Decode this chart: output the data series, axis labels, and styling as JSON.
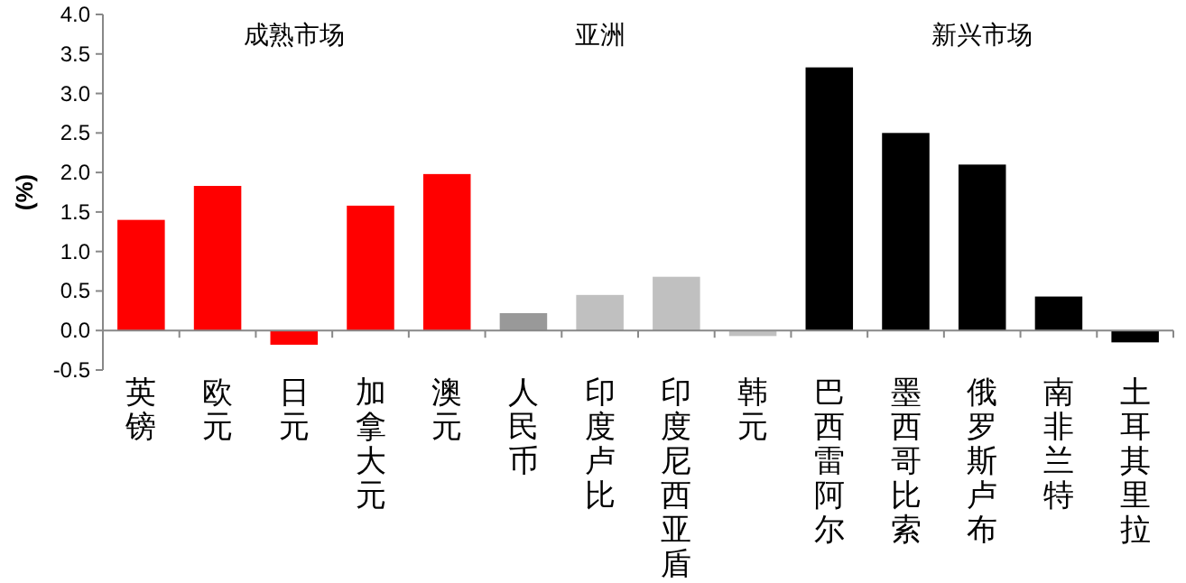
{
  "chart_data": {
    "type": "bar",
    "ylabel": "(%)",
    "categories": [
      "英镑",
      "欧元",
      "日元",
      "加拿大元",
      "澳元",
      "人民币",
      "印度卢比",
      "印度尼西亚盾",
      "韩元",
      "巴西雷阿尔",
      "墨西哥比索",
      "俄罗斯卢布",
      "南非兰特",
      "土耳其里拉"
    ],
    "values": [
      1.4,
      1.83,
      -0.18,
      1.58,
      1.98,
      0.22,
      0.45,
      0.68,
      -0.07,
      3.33,
      2.5,
      2.1,
      0.43,
      -0.15
    ],
    "colors": [
      "#ff0000",
      "#ff0000",
      "#ff0000",
      "#ff0000",
      "#ff0000",
      "#999999",
      "#c0c0c0",
      "#c0c0c0",
      "#c0c0c0",
      "#000000",
      "#000000",
      "#000000",
      "#000000",
      "#000000"
    ],
    "ylim": [
      -0.5,
      4.0
    ],
    "yticks": [
      {
        "value": -0.5,
        "label": "-0.5"
      },
      {
        "value": 0,
        "label": "0.0"
      },
      {
        "value": 0.5,
        "label": "0.5"
      },
      {
        "value": 1,
        "label": "1.0"
      },
      {
        "value": 1.5,
        "label": "1.5"
      },
      {
        "value": 2,
        "label": "2.0"
      },
      {
        "value": 2.5,
        "label": "2.5"
      },
      {
        "value": 3,
        "label": "3.0"
      },
      {
        "value": 3.5,
        "label": "3.5"
      },
      {
        "value": 4,
        "label": "4.0"
      }
    ],
    "annotations": [
      "成熟市场",
      "亚洲",
      "新兴市场"
    ]
  }
}
